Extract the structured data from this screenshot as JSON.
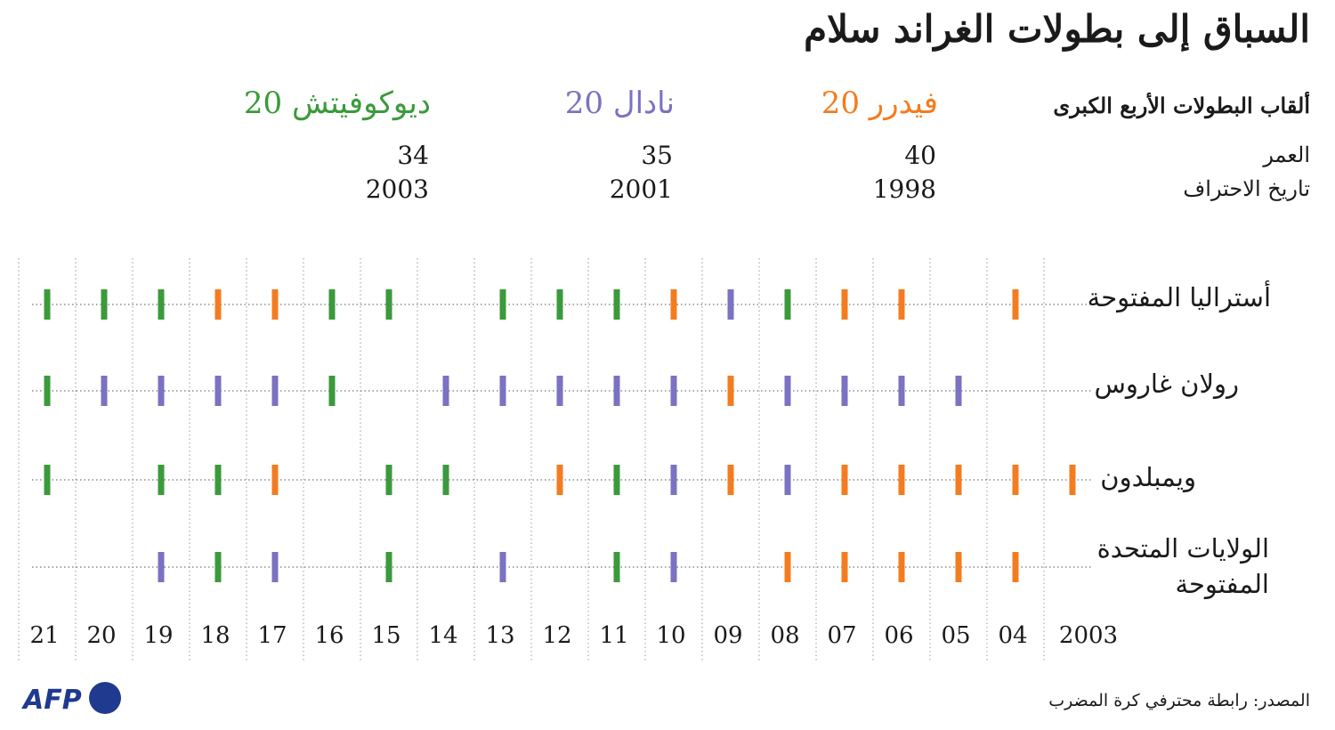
{
  "title": "السباق إلى بطولات الغراند سلام",
  "header": {
    "titles_label": "ألقاب البطولات الأربع الكبرى",
    "age_label": "العمر",
    "turnedpro_label": "تاريخ الاحتراف"
  },
  "players": [
    {
      "key": "F",
      "name": "فيدرر",
      "titles": "20",
      "age": "40",
      "turned_pro": "1998",
      "color": "#f47c20"
    },
    {
      "key": "N",
      "name": "نادال",
      "titles": "20",
      "age": "35",
      "turned_pro": "2001",
      "color": "#7b72c2"
    },
    {
      "key": "D",
      "name": "ديوكوفيتش",
      "titles": "20",
      "age": "34",
      "turned_pro": "2003",
      "color": "#3b9a3b"
    }
  ],
  "chart_data": {
    "type": "table",
    "x_tick_labels": [
      "2003",
      "04",
      "05",
      "06",
      "07",
      "08",
      "09",
      "10",
      "11",
      "12",
      "13",
      "14",
      "15",
      "16",
      "17",
      "18",
      "19",
      "20",
      "21"
    ],
    "x_years": [
      2003,
      2004,
      2005,
      2006,
      2007,
      2008,
      2009,
      2010,
      2011,
      2012,
      2013,
      2014,
      2015,
      2016,
      2017,
      2018,
      2019,
      2020,
      2021
    ],
    "tournaments": [
      {
        "label": "أستراليا المفتوحة",
        "winners": {
          "2004": "F",
          "2006": "F",
          "2007": "F",
          "2008": "D",
          "2009": "N",
          "2010": "F",
          "2011": "D",
          "2012": "D",
          "2013": "D",
          "2015": "D",
          "2016": "D",
          "2017": "F",
          "2018": "F",
          "2019": "D",
          "2020": "D",
          "2021": "D"
        }
      },
      {
        "label": "رولان غاروس",
        "winners": {
          "2005": "N",
          "2006": "N",
          "2007": "N",
          "2008": "N",
          "2009": "F",
          "2010": "N",
          "2011": "N",
          "2012": "N",
          "2013": "N",
          "2014": "N",
          "2016": "D",
          "2017": "N",
          "2018": "N",
          "2019": "N",
          "2020": "N",
          "2021": "D"
        }
      },
      {
        "label": "ويمبلدون",
        "winners": {
          "2003": "F",
          "2004": "F",
          "2005": "F",
          "2006": "F",
          "2007": "F",
          "2008": "N",
          "2009": "F",
          "2010": "N",
          "2011": "D",
          "2012": "F",
          "2014": "D",
          "2015": "D",
          "2017": "F",
          "2018": "D",
          "2019": "D",
          "2021": "D"
        }
      },
      {
        "label": "الولايات المتحدة المفتوحة",
        "winners": {
          "2004": "F",
          "2005": "F",
          "2006": "F",
          "2007": "F",
          "2008": "F",
          "2010": "N",
          "2011": "D",
          "2013": "N",
          "2015": "D",
          "2017": "N",
          "2018": "D",
          "2019": "N"
        }
      }
    ]
  },
  "source": "المصدر: رابطة محترفي كرة المضرب",
  "logo_text": "AFP"
}
